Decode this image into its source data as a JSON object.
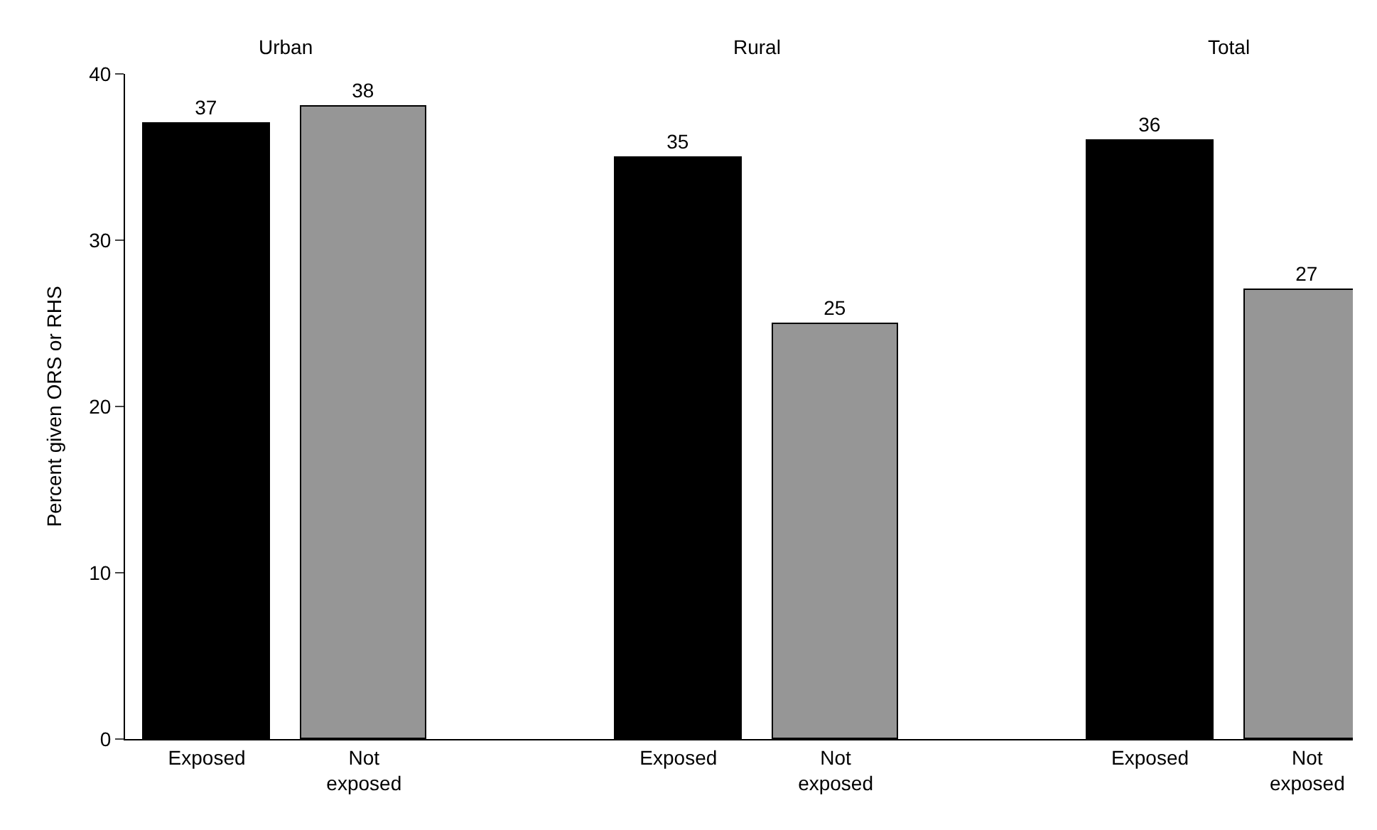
{
  "chart_data": {
    "type": "bar",
    "ylabel": "Percent given ORS or RHS",
    "categories": [
      "Exposed",
      "Not exposed",
      null,
      "Exposed",
      "Not exposed",
      null,
      "Exposed",
      "Not exposed"
    ],
    "values": [
      37,
      38,
      null,
      35,
      25,
      null,
      36,
      27
    ],
    "colors": [
      "#000000",
      "#969696",
      "#ffffff",
      "#000000",
      "#969696",
      "#ffffff",
      "#000000",
      "#969696"
    ],
    "annotations": [
      "Urban",
      "Rural",
      "Total"
    ],
    "ylim": [
      0,
      40
    ],
    "yticks": [
      0,
      10,
      20,
      30,
      40
    ],
    "data_labels": true
  }
}
